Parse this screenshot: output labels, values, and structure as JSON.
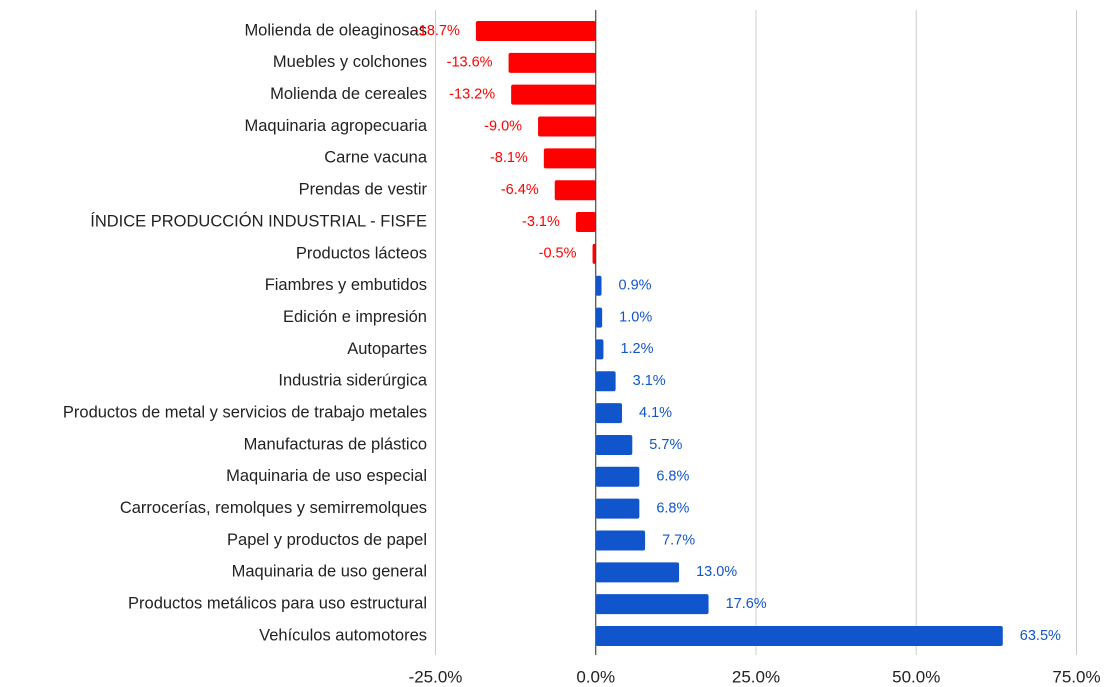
{
  "chart_data": {
    "type": "hbar",
    "categories": [
      "Molienda de oleaginosas",
      "Muebles y colchones",
      "Molienda de cereales",
      "Maquinaria agropecuaria",
      "Carne vacuna",
      "Prendas de vestir",
      "ÍNDICE PRODUCCIÓN INDUSTRIAL - FISFE",
      "Productos lácteos",
      "Fiambres y embutidos",
      "Edición e impresión",
      "Autopartes",
      "Industria siderúrgica",
      "Productos de metal y servicios de trabajo metales",
      "Manufacturas de plástico",
      "Maquinaria de uso especial",
      "Carrocerías, remolques y semirremolques",
      "Papel y productos de papel",
      "Maquinaria de uso general",
      "Productos metálicos para uso estructural",
      "Vehículos automotores"
    ],
    "values": [
      -18.7,
      -13.6,
      -13.2,
      -9.0,
      -8.1,
      -6.4,
      -3.1,
      -0.5,
      0.9,
      1.0,
      1.2,
      3.1,
      4.1,
      5.7,
      6.8,
      6.8,
      7.7,
      13.0,
      17.6,
      63.5
    ],
    "value_labels": [
      "-18.7%",
      "-13.6%",
      "-13.2%",
      "-9.0%",
      "-8.1%",
      "-6.4%",
      "-3.1%",
      "-0.5%",
      "0.9%",
      "1.0%",
      "1.2%",
      "3.1%",
      "4.1%",
      "5.7%",
      "6.8%",
      "6.8%",
      "7.7%",
      "13.0%",
      "17.6%",
      "63.5%"
    ],
    "color_negative": "#ff0000",
    "color_positive": "#1155cc",
    "xlim": [
      -25,
      75
    ],
    "xticks": [
      {
        "value": -25,
        "label": "-25.0%"
      },
      {
        "value": 0,
        "label": "0.0%"
      },
      {
        "value": 25,
        "label": "25.0%"
      },
      {
        "value": 50,
        "label": "50.0%"
      },
      {
        "value": 75,
        "label": "75.0%"
      }
    ],
    "grid": true
  }
}
